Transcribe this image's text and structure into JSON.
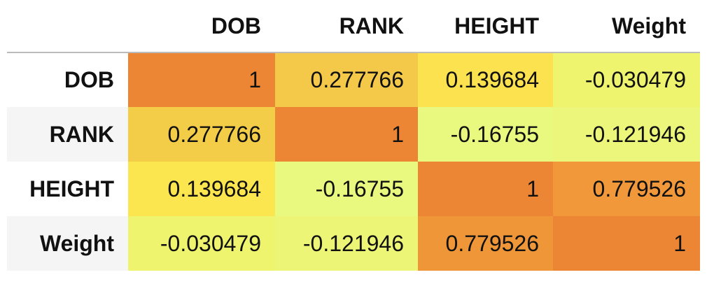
{
  "table": {
    "columns": [
      "DOB",
      "RANK",
      "HEIGHT",
      "Weight"
    ],
    "index": [
      "DOB",
      "RANK",
      "HEIGHT",
      "Weight"
    ],
    "rows": [
      [
        "1",
        "0.277766",
        "0.139684",
        "-0.030479"
      ],
      [
        "0.277766",
        "1",
        "-0.16755",
        "-0.121946"
      ],
      [
        "0.139684",
        "-0.16755",
        "1",
        "0.779526"
      ],
      [
        "-0.030479",
        "-0.121946",
        "0.779526",
        "1"
      ]
    ],
    "colors": [
      [
        "#ed8634",
        "#f4c94a",
        "#fbe24e",
        "#eef46d"
      ],
      [
        "#f3cd48",
        "#ed8634",
        "#e9f87f",
        "#ecf67a"
      ],
      [
        "#fce64f",
        "#e9f87f",
        "#ed8634",
        "#f0983a"
      ],
      [
        "#eef46d",
        "#edf576",
        "#ef9638",
        "#ed8634"
      ]
    ]
  }
}
